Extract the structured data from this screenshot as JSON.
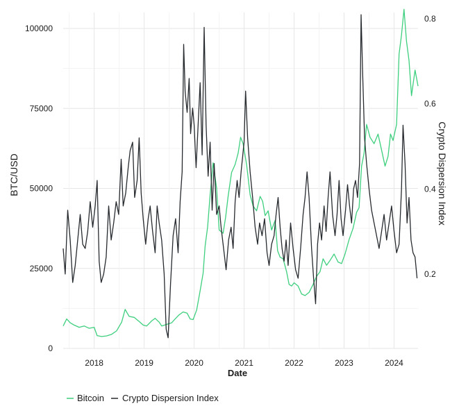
{
  "chart_data": {
    "type": "line",
    "title": "",
    "xlabel": "Date",
    "ylabel_left": "BTC/USD",
    "ylabel_right": "Crypto Dispersion Index",
    "x_ticks": [
      "2018",
      "2019",
      "2020",
      "2021",
      "2022",
      "2023",
      "2024"
    ],
    "x_range": [
      2017.38,
      2024.48
    ],
    "y_left_ticks": [
      "0",
      "25000",
      "50000",
      "75000",
      "100000"
    ],
    "y_left_range": [
      0,
      105000
    ],
    "y_right_ticks": [
      "0.2",
      "0.4",
      "0.6",
      "0.8"
    ],
    "y_right_range": [
      0.025,
      0.815
    ],
    "grid": true,
    "legend_position": "bottom-left",
    "series": [
      {
        "name": "Bitcoin",
        "axis": "left",
        "color": "#3dcf7e",
        "points": [
          [
            2017.38,
            7000
          ],
          [
            2017.45,
            9200
          ],
          [
            2017.52,
            8000
          ],
          [
            2017.6,
            7300
          ],
          [
            2017.7,
            6600
          ],
          [
            2017.8,
            7000
          ],
          [
            2017.9,
            6300
          ],
          [
            2018.0,
            6600
          ],
          [
            2018.06,
            4000
          ],
          [
            2018.15,
            3700
          ],
          [
            2018.25,
            3900
          ],
          [
            2018.35,
            4400
          ],
          [
            2018.45,
            5500
          ],
          [
            2018.55,
            8200
          ],
          [
            2018.62,
            12200
          ],
          [
            2018.7,
            10000
          ],
          [
            2018.8,
            9700
          ],
          [
            2018.9,
            8400
          ],
          [
            2018.98,
            7300
          ],
          [
            2019.05,
            7000
          ],
          [
            2019.15,
            8600
          ],
          [
            2019.22,
            9400
          ],
          [
            2019.3,
            8200
          ],
          [
            2019.35,
            7000
          ],
          [
            2019.45,
            7500
          ],
          [
            2019.55,
            8000
          ],
          [
            2019.62,
            9200
          ],
          [
            2019.7,
            10500
          ],
          [
            2019.78,
            11400
          ],
          [
            2019.86,
            11000
          ],
          [
            2019.92,
            9200
          ],
          [
            2019.98,
            9000
          ],
          [
            2020.05,
            12000
          ],
          [
            2020.12,
            18000
          ],
          [
            2020.18,
            23500
          ],
          [
            2020.22,
            32000
          ],
          [
            2020.27,
            38000
          ],
          [
            2020.32,
            48000
          ],
          [
            2020.38,
            58000
          ],
          [
            2020.45,
            50000
          ],
          [
            2020.5,
            37000
          ],
          [
            2020.58,
            36000
          ],
          [
            2020.63,
            41000
          ],
          [
            2020.68,
            47500
          ],
          [
            2020.75,
            55000
          ],
          [
            2020.82,
            57500
          ],
          [
            2020.88,
            61000
          ],
          [
            2020.93,
            66000
          ],
          [
            2020.98,
            64000
          ],
          [
            2021.05,
            57500
          ],
          [
            2021.12,
            48000
          ],
          [
            2021.18,
            44500
          ],
          [
            2021.25,
            43000
          ],
          [
            2021.32,
            47500
          ],
          [
            2021.37,
            46000
          ],
          [
            2021.42,
            41500
          ],
          [
            2021.48,
            43000
          ],
          [
            2021.55,
            37000
          ],
          [
            2021.62,
            40000
          ],
          [
            2021.67,
            30500
          ],
          [
            2021.72,
            28500
          ],
          [
            2021.78,
            28000
          ],
          [
            2021.85,
            24000
          ],
          [
            2021.9,
            20000
          ],
          [
            2021.95,
            19500
          ],
          [
            2022.0,
            20500
          ],
          [
            2022.08,
            19500
          ],
          [
            2022.15,
            17000
          ],
          [
            2022.22,
            16500
          ],
          [
            2022.3,
            17500
          ],
          [
            2022.38,
            20000
          ],
          [
            2022.45,
            22500
          ],
          [
            2022.52,
            24000
          ],
          [
            2022.58,
            28000
          ],
          [
            2022.65,
            26000
          ],
          [
            2022.72,
            27500
          ],
          [
            2022.8,
            29500
          ],
          [
            2022.88,
            27000
          ],
          [
            2022.95,
            26500
          ],
          [
            2023.02,
            29500
          ],
          [
            2023.1,
            34000
          ],
          [
            2023.18,
            37500
          ],
          [
            2023.25,
            42500
          ],
          [
            2023.3,
            44000
          ],
          [
            2023.35,
            57000
          ],
          [
            2023.4,
            61000
          ],
          [
            2023.45,
            70000
          ],
          [
            2023.52,
            66000
          ],
          [
            2023.6,
            64000
          ],
          [
            2023.68,
            67000
          ],
          [
            2023.75,
            62000
          ],
          [
            2023.82,
            57000
          ],
          [
            2023.88,
            60000
          ],
          [
            2023.93,
            67000
          ],
          [
            2023.98,
            65000
          ],
          [
            2024.05,
            70000
          ],
          [
            2024.1,
            92000
          ],
          [
            2024.15,
            98000
          ],
          [
            2024.2,
            106000
          ],
          [
            2024.25,
            96000
          ],
          [
            2024.3,
            90000
          ],
          [
            2024.35,
            79000
          ],
          [
            2024.42,
            87000
          ],
          [
            2024.48,
            82000
          ]
        ]
      },
      {
        "name": "Crypto Dispersion Index",
        "axis": "right",
        "color": "#262a2e",
        "points": [
          [
            2017.38,
            0.26
          ],
          [
            2017.42,
            0.2
          ],
          [
            2017.47,
            0.35
          ],
          [
            2017.52,
            0.28
          ],
          [
            2017.57,
            0.18
          ],
          [
            2017.62,
            0.22
          ],
          [
            2017.67,
            0.28
          ],
          [
            2017.72,
            0.34
          ],
          [
            2017.77,
            0.27
          ],
          [
            2017.82,
            0.26
          ],
          [
            2017.87,
            0.3
          ],
          [
            2017.92,
            0.37
          ],
          [
            2017.97,
            0.31
          ],
          [
            2018.02,
            0.36
          ],
          [
            2018.06,
            0.42
          ],
          [
            2018.1,
            0.23
          ],
          [
            2018.14,
            0.18
          ],
          [
            2018.19,
            0.2
          ],
          [
            2018.24,
            0.24
          ],
          [
            2018.29,
            0.36
          ],
          [
            2018.34,
            0.28
          ],
          [
            2018.39,
            0.32
          ],
          [
            2018.44,
            0.37
          ],
          [
            2018.49,
            0.34
          ],
          [
            2018.54,
            0.47
          ],
          [
            2018.58,
            0.36
          ],
          [
            2018.63,
            0.39
          ],
          [
            2018.68,
            0.45
          ],
          [
            2018.72,
            0.49
          ],
          [
            2018.77,
            0.51
          ],
          [
            2018.81,
            0.38
          ],
          [
            2018.86,
            0.42
          ],
          [
            2018.9,
            0.52
          ],
          [
            2018.94,
            0.39
          ],
          [
            2018.98,
            0.33
          ],
          [
            2019.03,
            0.27
          ],
          [
            2019.08,
            0.33
          ],
          [
            2019.12,
            0.36
          ],
          [
            2019.17,
            0.3
          ],
          [
            2019.22,
            0.25
          ],
          [
            2019.26,
            0.36
          ],
          [
            2019.3,
            0.32
          ],
          [
            2019.35,
            0.28
          ],
          [
            2019.4,
            0.2
          ],
          [
            2019.44,
            0.07
          ],
          [
            2019.48,
            0.05
          ],
          [
            2019.53,
            0.18
          ],
          [
            2019.58,
            0.29
          ],
          [
            2019.63,
            0.33
          ],
          [
            2019.68,
            0.25
          ],
          [
            2019.72,
            0.37
          ],
          [
            2019.76,
            0.44
          ],
          [
            2019.79,
            0.74
          ],
          [
            2019.82,
            0.63
          ],
          [
            2019.86,
            0.58
          ],
          [
            2019.9,
            0.66
          ],
          [
            2019.93,
            0.53
          ],
          [
            2019.97,
            0.59
          ],
          [
            2020.0,
            0.55
          ],
          [
            2020.04,
            0.45
          ],
          [
            2020.08,
            0.55
          ],
          [
            2020.12,
            0.65
          ],
          [
            2020.16,
            0.48
          ],
          [
            2020.2,
            0.78
          ],
          [
            2020.24,
            0.55
          ],
          [
            2020.28,
            0.43
          ],
          [
            2020.32,
            0.51
          ],
          [
            2020.36,
            0.35
          ],
          [
            2020.4,
            0.46
          ],
          [
            2020.45,
            0.34
          ],
          [
            2020.5,
            0.36
          ],
          [
            2020.54,
            0.31
          ],
          [
            2020.59,
            0.26
          ],
          [
            2020.64,
            0.21
          ],
          [
            2020.69,
            0.28
          ],
          [
            2020.74,
            0.31
          ],
          [
            2020.78,
            0.26
          ],
          [
            2020.82,
            0.37
          ],
          [
            2020.86,
            0.42
          ],
          [
            2020.9,
            0.38
          ],
          [
            2020.94,
            0.44
          ],
          [
            2021.0,
            0.51
          ],
          [
            2021.03,
            0.63
          ],
          [
            2021.07,
            0.52
          ],
          [
            2021.12,
            0.44
          ],
          [
            2021.17,
            0.38
          ],
          [
            2021.22,
            0.31
          ],
          [
            2021.27,
            0.27
          ],
          [
            2021.31,
            0.32
          ],
          [
            2021.36,
            0.29
          ],
          [
            2021.41,
            0.33
          ],
          [
            2021.46,
            0.25
          ],
          [
            2021.5,
            0.22
          ],
          [
            2021.55,
            0.27
          ],
          [
            2021.6,
            0.29
          ],
          [
            2021.64,
            0.34
          ],
          [
            2021.68,
            0.38
          ],
          [
            2021.72,
            0.31
          ],
          [
            2021.76,
            0.26
          ],
          [
            2021.8,
            0.23
          ],
          [
            2021.84,
            0.28
          ],
          [
            2021.88,
            0.22
          ],
          [
            2021.93,
            0.32
          ],
          [
            2021.98,
            0.26
          ],
          [
            2022.03,
            0.21
          ],
          [
            2022.08,
            0.19
          ],
          [
            2022.13,
            0.26
          ],
          [
            2022.18,
            0.34
          ],
          [
            2022.22,
            0.38
          ],
          [
            2022.26,
            0.44
          ],
          [
            2022.3,
            0.38
          ],
          [
            2022.35,
            0.26
          ],
          [
            2022.39,
            0.19
          ],
          [
            2022.43,
            0.13
          ],
          [
            2022.47,
            0.27
          ],
          [
            2022.51,
            0.32
          ],
          [
            2022.55,
            0.28
          ],
          [
            2022.6,
            0.36
          ],
          [
            2022.64,
            0.3
          ],
          [
            2022.68,
            0.38
          ],
          [
            2022.72,
            0.44
          ],
          [
            2022.77,
            0.34
          ],
          [
            2022.82,
            0.29
          ],
          [
            2022.86,
            0.34
          ],
          [
            2022.9,
            0.42
          ],
          [
            2022.94,
            0.33
          ],
          [
            2022.98,
            0.29
          ],
          [
            2023.03,
            0.35
          ],
          [
            2023.07,
            0.41
          ],
          [
            2023.11,
            0.36
          ],
          [
            2023.15,
            0.32
          ],
          [
            2023.19,
            0.4
          ],
          [
            2023.23,
            0.42
          ],
          [
            2023.27,
            0.38
          ],
          [
            2023.31,
            0.46
          ],
          [
            2023.34,
            0.81
          ],
          [
            2023.37,
            0.68
          ],
          [
            2023.41,
            0.52
          ],
          [
            2023.45,
            0.46
          ],
          [
            2023.5,
            0.4
          ],
          [
            2023.55,
            0.35
          ],
          [
            2023.6,
            0.32
          ],
          [
            2023.65,
            0.29
          ],
          [
            2023.7,
            0.26
          ],
          [
            2023.75,
            0.3
          ],
          [
            2023.8,
            0.34
          ],
          [
            2023.85,
            0.28
          ],
          [
            2023.9,
            0.32
          ],
          [
            2023.95,
            0.36
          ],
          [
            2024.0,
            0.3
          ],
          [
            2024.05,
            0.25
          ],
          [
            2024.1,
            0.27
          ],
          [
            2024.15,
            0.4
          ],
          [
            2024.18,
            0.55
          ],
          [
            2024.22,
            0.46
          ],
          [
            2024.26,
            0.32
          ],
          [
            2024.3,
            0.38
          ],
          [
            2024.34,
            0.28
          ],
          [
            2024.38,
            0.25
          ],
          [
            2024.42,
            0.24
          ],
          [
            2024.46,
            0.19
          ]
        ]
      }
    ]
  },
  "legend": [
    {
      "label": "Bitcoin",
      "color": "#3dcf7e"
    },
    {
      "label": "Crypto Dispersion Index",
      "color": "#262a2e"
    }
  ]
}
